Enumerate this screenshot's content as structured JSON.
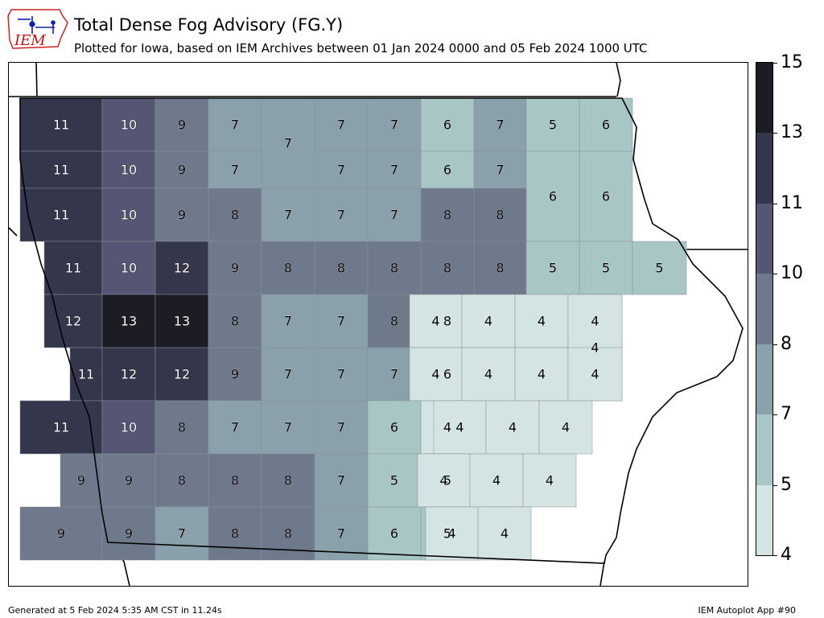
{
  "header": {
    "logo_text": "IEM",
    "title": "Total Dense Fog Advisory (FG.Y)",
    "subtitle": "Plotted for Iowa, based on IEM Archives  between 01 Jan 2024 0000 and 05 Feb 2024 1000 UTC"
  },
  "footer": {
    "generated": "Generated at 5 Feb 2024 5:35 AM CST in 11.24s",
    "app": "IEM Autoplot App #90"
  },
  "colorbar": {
    "ticks": [
      "4",
      "5",
      "7",
      "8",
      "10",
      "11",
      "13",
      "15"
    ],
    "colors": [
      "#d4e4e4",
      "#a8c6c6",
      "#8aa0aa",
      "#6e7a8c",
      "#545674",
      "#34364c",
      "#1c1c24"
    ]
  },
  "map": {
    "counties": [
      {
        "value": 11,
        "row": 0,
        "col": 0
      },
      {
        "value": 10,
        "row": 0,
        "col": 1
      },
      {
        "value": 9,
        "row": 0,
        "col": 2
      },
      {
        "value": 7,
        "row": 0,
        "col": 3
      },
      {
        "value": 7,
        "row": 0,
        "col": 5
      },
      {
        "value": 7,
        "row": 0,
        "col": 6
      },
      {
        "value": 6,
        "row": 0,
        "col": 7
      },
      {
        "value": 7,
        "row": 0,
        "col": 8
      },
      {
        "value": 5,
        "row": 0,
        "col": 9
      },
      {
        "value": 6,
        "row": 0,
        "col": 10
      },
      {
        "value": 7,
        "row": 0.5,
        "col": 4
      },
      {
        "value": 11,
        "row": 1,
        "col": 0
      },
      {
        "value": 10,
        "row": 1,
        "col": 1
      },
      {
        "value": 9,
        "row": 1,
        "col": 2
      },
      {
        "value": 7,
        "row": 1,
        "col": 3
      },
      {
        "value": 7,
        "row": 1,
        "col": 5
      },
      {
        "value": 7,
        "row": 1,
        "col": 6
      },
      {
        "value": 6,
        "row": 1,
        "col": 7
      },
      {
        "value": 7,
        "row": 1,
        "col": 8
      },
      {
        "value": 6,
        "row": 1.5,
        "col": 9
      },
      {
        "value": 6,
        "row": 1.5,
        "col": 10
      },
      {
        "value": 11,
        "row": 2,
        "col": 0
      },
      {
        "value": 10,
        "row": 2,
        "col": 1
      },
      {
        "value": 9,
        "row": 2,
        "col": 2
      },
      {
        "value": 8,
        "row": 2,
        "col": 3
      },
      {
        "value": 7,
        "row": 2,
        "col": 4
      },
      {
        "value": 7,
        "row": 2,
        "col": 5
      },
      {
        "value": 7,
        "row": 2,
        "col": 6
      },
      {
        "value": 8,
        "row": 2,
        "col": 7
      },
      {
        "value": 8,
        "row": 2,
        "col": 8
      },
      {
        "value": 11,
        "row": 3,
        "col": 0
      },
      {
        "value": 10,
        "row": 3,
        "col": 1
      },
      {
        "value": 12,
        "row": 3,
        "col": 2
      },
      {
        "value": 9,
        "row": 3,
        "col": 3
      },
      {
        "value": 8,
        "row": 3,
        "col": 4
      },
      {
        "value": 8,
        "row": 3,
        "col": 5
      },
      {
        "value": 8,
        "row": 3,
        "col": 6
      },
      {
        "value": 8,
        "row": 3,
        "col": 7
      },
      {
        "value": 8,
        "row": 3,
        "col": 8
      },
      {
        "value": 5,
        "row": 3,
        "col": 9
      },
      {
        "value": 5,
        "row": 3,
        "col": 10
      },
      {
        "value": 5,
        "row": 3,
        "col": 11
      },
      {
        "value": 12,
        "row": 4,
        "col": 0
      },
      {
        "value": 13,
        "row": 4,
        "col": 1
      },
      {
        "value": 13,
        "row": 4,
        "col": 2
      },
      {
        "value": 8,
        "row": 4,
        "col": 3
      },
      {
        "value": 7,
        "row": 4,
        "col": 4
      },
      {
        "value": 7,
        "row": 4,
        "col": 5
      },
      {
        "value": 8,
        "row": 4,
        "col": 6
      },
      {
        "value": 8,
        "row": 4,
        "col": 7
      },
      {
        "value": 4,
        "row": 4,
        "col": 8
      },
      {
        "value": 4,
        "row": 4,
        "col": 9
      },
      {
        "value": 4,
        "row": 4,
        "col": 10
      },
      {
        "value": 4,
        "row": 4,
        "col": 11
      },
      {
        "value": 4,
        "row": 4.5,
        "col": 11
      },
      {
        "value": 11,
        "row": 5,
        "col": 0
      },
      {
        "value": 12,
        "row": 5,
        "col": 1
      },
      {
        "value": 12,
        "row": 5,
        "col": 2
      },
      {
        "value": 9,
        "row": 5,
        "col": 3
      },
      {
        "value": 7,
        "row": 5,
        "col": 4
      },
      {
        "value": 7,
        "row": 5,
        "col": 5
      },
      {
        "value": 7,
        "row": 5,
        "col": 6
      },
      {
        "value": 6,
        "row": 5,
        "col": 7
      },
      {
        "value": 4,
        "row": 5,
        "col": 8
      },
      {
        "value": 4,
        "row": 5,
        "col": 9
      },
      {
        "value": 4,
        "row": 5,
        "col": 10
      },
      {
        "value": 4,
        "row": 5,
        "col": 11
      },
      {
        "value": 11,
        "row": 6,
        "col": 0
      },
      {
        "value": 10,
        "row": 6,
        "col": 1
      },
      {
        "value": 8,
        "row": 6,
        "col": 2
      },
      {
        "value": 7,
        "row": 6,
        "col": 3
      },
      {
        "value": 7,
        "row": 6,
        "col": 4
      },
      {
        "value": 7,
        "row": 6,
        "col": 5
      },
      {
        "value": 6,
        "row": 6,
        "col": 6
      },
      {
        "value": 4,
        "row": 6,
        "col": 7
      },
      {
        "value": 4,
        "row": 6,
        "col": 8
      },
      {
        "value": 4,
        "row": 6,
        "col": 9
      },
      {
        "value": 4,
        "row": 6,
        "col": 10
      },
      {
        "value": 9,
        "row": 7,
        "col": 0
      },
      {
        "value": 9,
        "row": 7,
        "col": 1
      },
      {
        "value": 8,
        "row": 7,
        "col": 2
      },
      {
        "value": 8,
        "row": 7,
        "col": 3
      },
      {
        "value": 8,
        "row": 7,
        "col": 4
      },
      {
        "value": 7,
        "row": 7,
        "col": 5
      },
      {
        "value": 5,
        "row": 7,
        "col": 6
      },
      {
        "value": 5,
        "row": 7,
        "col": 7
      },
      {
        "value": 4,
        "row": 7,
        "col": 8
      },
      {
        "value": 4,
        "row": 7,
        "col": 9
      },
      {
        "value": 4,
        "row": 7,
        "col": 10
      },
      {
        "value": 9,
        "row": 8,
        "col": 0
      },
      {
        "value": 9,
        "row": 8,
        "col": 1
      },
      {
        "value": 7,
        "row": 8,
        "col": 2
      },
      {
        "value": 8,
        "row": 8,
        "col": 3
      },
      {
        "value": 8,
        "row": 8,
        "col": 4
      },
      {
        "value": 7,
        "row": 8,
        "col": 5
      },
      {
        "value": 6,
        "row": 8,
        "col": 6
      },
      {
        "value": 5,
        "row": 8,
        "col": 7
      },
      {
        "value": 4,
        "row": 8,
        "col": 8
      },
      {
        "value": 4,
        "row": 8,
        "col": 9
      }
    ]
  }
}
